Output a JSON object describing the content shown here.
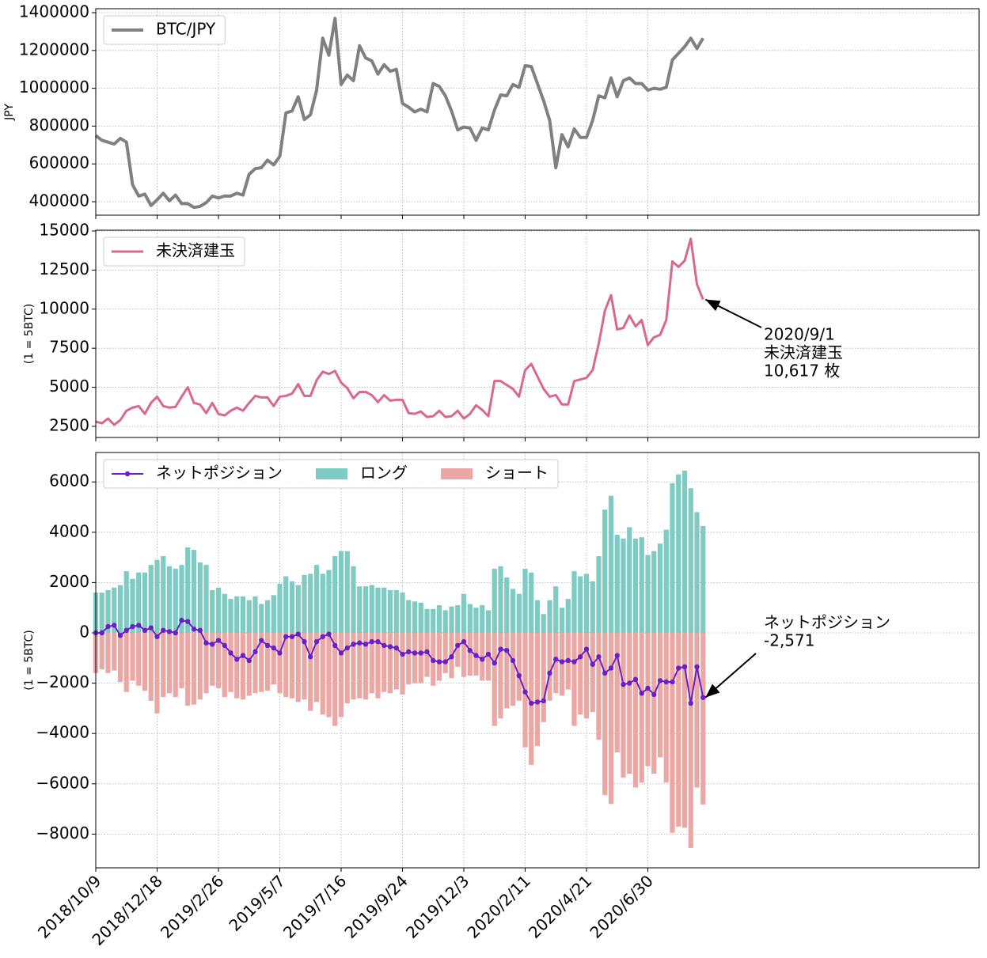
{
  "chart_data": [
    {
      "type": "line",
      "ylabel": "JPY",
      "x": [
        "2018/10/9",
        "2018/10/16",
        "2018/10/23",
        "2018/10/30",
        "2018/11/6",
        "2018/11/13",
        "2018/11/20",
        "2018/11/27",
        "2018/12/4",
        "2018/12/11",
        "2018/12/18",
        "2018/12/25",
        "2019/1/1",
        "2019/1/8",
        "2019/1/15",
        "2019/1/22",
        "2019/1/29",
        "2019/2/5",
        "2019/2/12",
        "2019/2/19",
        "2019/2/26",
        "2019/3/5",
        "2019/3/12",
        "2019/3/19",
        "2019/3/26",
        "2019/4/2",
        "2019/4/9",
        "2019/4/16",
        "2019/4/23",
        "2019/4/30",
        "2019/5/7",
        "2019/5/14",
        "2019/5/21",
        "2019/5/28",
        "2019/6/4",
        "2019/6/11",
        "2019/6/18",
        "2019/6/25",
        "2019/7/2",
        "2019/7/9",
        "2019/7/16",
        "2019/7/23",
        "2019/7/30",
        "2019/8/6",
        "2019/8/13",
        "2019/8/20",
        "2019/8/27",
        "2019/9/3",
        "2019/9/10",
        "2019/9/17",
        "2019/9/24",
        "2019/10/1",
        "2019/10/8",
        "2019/10/15",
        "2019/10/22",
        "2019/10/29",
        "2019/11/5",
        "2019/11/12",
        "2019/11/19",
        "2019/11/26",
        "2019/12/3",
        "2019/12/10",
        "2019/12/17",
        "2019/12/24",
        "2019/12/31",
        "2020/1/7",
        "2020/1/14",
        "2020/1/21",
        "2020/1/28",
        "2020/2/4",
        "2020/2/11",
        "2020/2/18",
        "2020/2/25",
        "2020/3/3",
        "2020/3/10",
        "2020/3/17",
        "2020/3/24",
        "2020/3/31",
        "2020/4/7",
        "2020/4/14",
        "2020/4/21",
        "2020/4/28",
        "2020/5/5",
        "2020/5/12",
        "2020/5/19",
        "2020/5/26",
        "2020/6/2",
        "2020/6/9",
        "2020/6/16",
        "2020/6/23",
        "2020/6/30",
        "2020/7/7",
        "2020/7/14",
        "2020/7/21",
        "2020/7/28",
        "2020/8/4",
        "2020/8/11",
        "2020/8/18",
        "2020/8/25",
        "2020/9/1"
      ],
      "xlim": [
        "2018/10/9",
        "2021/7/13"
      ],
      "xticks": [
        "2018/10/9",
        "2018/12/18",
        "2019/2/26",
        "2019/5/7",
        "2019/7/16",
        "2019/9/24",
        "2019/12/3",
        "2020/2/11",
        "2020/4/21",
        "2020/6/30"
      ],
      "ylim": [
        328900,
        1420900
      ],
      "yticks": [
        400000,
        600000,
        800000,
        1000000,
        1200000,
        1400000
      ],
      "grid": true,
      "legend": "upper left",
      "series": [
        {
          "name": "BTC/JPY",
          "color": "#808080",
          "width": 4,
          "values": [
            750000,
            725000,
            715000,
            705000,
            735000,
            715000,
            490000,
            430000,
            440000,
            380000,
            410000,
            445000,
            405000,
            435000,
            390000,
            390000,
            370000,
            375000,
            395000,
            430000,
            420000,
            430000,
            430000,
            445000,
            435000,
            545000,
            575000,
            580000,
            620000,
            595000,
            640000,
            870000,
            880000,
            955000,
            835000,
            860000,
            990000,
            1265000,
            1175000,
            1370000,
            1020000,
            1070000,
            1040000,
            1225000,
            1160000,
            1145000,
            1075000,
            1125000,
            1090000,
            1100000,
            920000,
            900000,
            875000,
            890000,
            875000,
            1025000,
            1010000,
            960000,
            880000,
            780000,
            795000,
            790000,
            725000,
            790000,
            780000,
            885000,
            965000,
            960000,
            1020000,
            1005000,
            1120000,
            1115000,
            1025000,
            935000,
            830000,
            580000,
            755000,
            690000,
            785000,
            740000,
            740000,
            830000,
            960000,
            950000,
            1055000,
            955000,
            1040000,
            1055000,
            1025000,
            1025000,
            990000,
            1000000,
            995000,
            1005000,
            1150000,
            1185000,
            1220000,
            1265000,
            1210000,
            1265000
          ]
        }
      ]
    },
    {
      "type": "line",
      "ylabel": "(1 = 5BTC)",
      "x": [
        "2018/10/9",
        "2018/10/16",
        "2018/10/23",
        "2018/10/30",
        "2018/11/6",
        "2018/11/13",
        "2018/11/20",
        "2018/11/27",
        "2018/12/4",
        "2018/12/11",
        "2018/12/18",
        "2018/12/25",
        "2019/1/1",
        "2019/1/8",
        "2019/1/15",
        "2019/1/22",
        "2019/1/29",
        "2019/2/5",
        "2019/2/12",
        "2019/2/19",
        "2019/2/26",
        "2019/3/5",
        "2019/3/12",
        "2019/3/19",
        "2019/3/26",
        "2019/4/2",
        "2019/4/9",
        "2019/4/16",
        "2019/4/23",
        "2019/4/30",
        "2019/5/7",
        "2019/5/14",
        "2019/5/21",
        "2019/5/28",
        "2019/6/4",
        "2019/6/11",
        "2019/6/18",
        "2019/6/25",
        "2019/7/2",
        "2019/7/9",
        "2019/7/16",
        "2019/7/23",
        "2019/7/30",
        "2019/8/6",
        "2019/8/13",
        "2019/8/20",
        "2019/8/27",
        "2019/9/3",
        "2019/9/10",
        "2019/9/17",
        "2019/9/24",
        "2019/10/1",
        "2019/10/8",
        "2019/10/15",
        "2019/10/22",
        "2019/10/29",
        "2019/11/5",
        "2019/11/12",
        "2019/11/19",
        "2019/11/26",
        "2019/12/3",
        "2019/12/10",
        "2019/12/17",
        "2019/12/24",
        "2019/12/31",
        "2020/1/7",
        "2020/1/14",
        "2020/1/21",
        "2020/1/28",
        "2020/2/4",
        "2020/2/11",
        "2020/2/18",
        "2020/2/25",
        "2020/3/3",
        "2020/3/10",
        "2020/3/17",
        "2020/3/24",
        "2020/3/31",
        "2020/4/7",
        "2020/4/14",
        "2020/4/21",
        "2020/4/28",
        "2020/5/5",
        "2020/5/12",
        "2020/5/19",
        "2020/5/26",
        "2020/6/2",
        "2020/6/9",
        "2020/6/16",
        "2020/6/23",
        "2020/6/30",
        "2020/7/7",
        "2020/7/14",
        "2020/7/21",
        "2020/7/28",
        "2020/8/4",
        "2020/8/11",
        "2020/8/18",
        "2020/8/25",
        "2020/9/1"
      ],
      "xlim": [
        "2018/10/9",
        "2021/7/13"
      ],
      "xticks": [
        "2018/10/9",
        "2018/12/18",
        "2019/2/26",
        "2019/5/7",
        "2019/7/16",
        "2019/9/24",
        "2019/12/3",
        "2020/2/11",
        "2020/4/21",
        "2020/6/30"
      ],
      "ylim": [
        1790,
        15050
      ],
      "yticks": [
        2500,
        5000,
        7500,
        10000,
        12500,
        15000
      ],
      "grid": true,
      "legend": "upper left",
      "series": [
        {
          "name": "未決済建玉",
          "color": "#d9688a",
          "width": 3,
          "values": [
            2800,
            2700,
            3000,
            2600,
            2900,
            3500,
            3700,
            3800,
            3300,
            4000,
            4400,
            3800,
            3700,
            3750,
            4400,
            5000,
            4000,
            3900,
            3350,
            4000,
            3300,
            3200,
            3500,
            3700,
            3500,
            4000,
            4450,
            4350,
            4350,
            3800,
            4400,
            4450,
            4600,
            5200,
            4450,
            4450,
            5450,
            6000,
            5850,
            6050,
            5300,
            4950,
            4300,
            4700,
            4700,
            4500,
            4050,
            4500,
            4150,
            4200,
            4200,
            3350,
            3300,
            3450,
            3100,
            3150,
            3500,
            3100,
            3150,
            3500,
            3000,
            3300,
            3850,
            3550,
            3150,
            5400,
            5400,
            5150,
            4900,
            4400,
            6100,
            6500,
            5700,
            4900,
            4400,
            4500,
            3900,
            3900,
            5400,
            5500,
            5600,
            6100,
            7800,
            9900,
            10900,
            8700,
            8800,
            9600,
            8900,
            9300,
            7700,
            8200,
            8350,
            9300,
            13050,
            12700,
            13100,
            14500,
            11600,
            10617
          ]
        }
      ],
      "annotation": [
        "2020/9/1",
        "未決済建玉",
        "10,617 枚"
      ]
    },
    {
      "type": "bar-line",
      "ylabel": "(1 = 5BTC)",
      "x": [
        "2018/10/9",
        "2018/10/16",
        "2018/10/23",
        "2018/10/30",
        "2018/11/6",
        "2018/11/13",
        "2018/11/20",
        "2018/11/27",
        "2018/12/4",
        "2018/12/11",
        "2018/12/18",
        "2018/12/25",
        "2019/1/1",
        "2019/1/8",
        "2019/1/15",
        "2019/1/22",
        "2019/1/29",
        "2019/2/5",
        "2019/2/12",
        "2019/2/19",
        "2019/2/26",
        "2019/3/5",
        "2019/3/12",
        "2019/3/19",
        "2019/3/26",
        "2019/4/2",
        "2019/4/9",
        "2019/4/16",
        "2019/4/23",
        "2019/4/30",
        "2019/5/7",
        "2019/5/14",
        "2019/5/21",
        "2019/5/28",
        "2019/6/4",
        "2019/6/11",
        "2019/6/18",
        "2019/6/25",
        "2019/7/2",
        "2019/7/9",
        "2019/7/16",
        "2019/7/23",
        "2019/7/30",
        "2019/8/6",
        "2019/8/13",
        "2019/8/20",
        "2019/8/27",
        "2019/9/3",
        "2019/9/10",
        "2019/9/17",
        "2019/9/24",
        "2019/10/1",
        "2019/10/8",
        "2019/10/15",
        "2019/10/22",
        "2019/10/29",
        "2019/11/5",
        "2019/11/12",
        "2019/11/19",
        "2019/11/26",
        "2019/12/3",
        "2019/12/10",
        "2019/12/17",
        "2019/12/24",
        "2019/12/31",
        "2020/1/7",
        "2020/1/14",
        "2020/1/21",
        "2020/1/28",
        "2020/2/4",
        "2020/2/11",
        "2020/2/18",
        "2020/2/25",
        "2020/3/3",
        "2020/3/10",
        "2020/3/17",
        "2020/3/24",
        "2020/3/31",
        "2020/4/7",
        "2020/4/14",
        "2020/4/21",
        "2020/4/28",
        "2020/5/5",
        "2020/5/12",
        "2020/5/19",
        "2020/5/26",
        "2020/6/2",
        "2020/6/9",
        "2020/6/16",
        "2020/6/23",
        "2020/6/30",
        "2020/7/7",
        "2020/7/14",
        "2020/7/21",
        "2020/7/28",
        "2020/8/4",
        "2020/8/11",
        "2020/8/18",
        "2020/8/25",
        "2020/9/1"
      ],
      "xlim": [
        "2018/10/9",
        "2021/7/13"
      ],
      "xticks": [
        "2018/10/9",
        "2018/12/18",
        "2019/2/26",
        "2019/5/7",
        "2019/7/16",
        "2019/9/24",
        "2019/12/3",
        "2020/2/11",
        "2020/4/21",
        "2020/6/30"
      ],
      "ylim": [
        -9340,
        7170
      ],
      "yticks": [
        {
          "value": -8000,
          "label": "−8000"
        },
        {
          "value": -6000,
          "label": "−6000"
        },
        {
          "value": -4000,
          "label": "−4000"
        },
        {
          "value": -2000,
          "label": "−2000"
        },
        0,
        2000,
        4000,
        6000
      ],
      "grid": true,
      "legend": "upper left",
      "series": [
        {
          "name": "ネットポジション",
          "type": "line",
          "marker": true,
          "color": "#6a1fc9",
          "width": 2,
          "values": [
            0,
            0,
            250,
            300,
            -100,
            100,
            250,
            300,
            100,
            200,
            -150,
            100,
            50,
            0,
            500,
            450,
            150,
            100,
            -400,
            -450,
            -300,
            -500,
            -800,
            -1050,
            -900,
            -1100,
            -750,
            -300,
            -500,
            -600,
            -800,
            -150,
            -150,
            -50,
            -350,
            -950,
            -350,
            -150,
            -50,
            -500,
            -800,
            -600,
            -450,
            -400,
            -450,
            -350,
            -350,
            -500,
            -550,
            -600,
            -850,
            -750,
            -800,
            -800,
            -750,
            -1100,
            -1150,
            -1150,
            -950,
            -500,
            -350,
            -700,
            -900,
            -1050,
            -850,
            -1200,
            -650,
            -700,
            -1100,
            -1700,
            -2350,
            -2800,
            -2750,
            -2700,
            -1600,
            -1050,
            -1150,
            -1100,
            -1150,
            -950,
            -650,
            -1250,
            -950,
            -1600,
            -1400,
            -900,
            -2050,
            -2000,
            -1850,
            -2400,
            -2200,
            -2450,
            -1900,
            -1950,
            -1950,
            -1400,
            -1350,
            -2800,
            -1350,
            -2571
          ]
        },
        {
          "name": "ロング",
          "type": "bar",
          "color": "#7dcbc2",
          "values": [
            1600,
            1600,
            1700,
            1800,
            1900,
            2450,
            2150,
            2400,
            2400,
            2700,
            2900,
            3050,
            2650,
            2550,
            2700,
            3400,
            3300,
            2800,
            2700,
            1700,
            1800,
            1550,
            1350,
            1450,
            1450,
            1300,
            1450,
            1150,
            1300,
            1500,
            1950,
            2250,
            2050,
            1900,
            2300,
            2350,
            2700,
            2350,
            2500,
            3050,
            3250,
            3250,
            2650,
            1850,
            1850,
            1900,
            1800,
            1800,
            1700,
            1700,
            1600,
            1300,
            1250,
            1200,
            950,
            950,
            1100,
            900,
            1050,
            1100,
            1550,
            1150,
            1000,
            1100,
            900,
            2550,
            2650,
            2200,
            1750,
            1550,
            2550,
            2400,
            1300,
            750,
            1300,
            1850,
            1000,
            1350,
            2450,
            2250,
            2350,
            2050,
            3050,
            4900,
            5450,
            3900,
            3750,
            4200,
            3750,
            3800,
            3100,
            3250,
            3550,
            4100,
            5950,
            6300,
            6450,
            5750,
            4800,
            4250
          ]
        },
        {
          "name": "ショート",
          "type": "bar",
          "color": "#eba7a3",
          "values": [
            -1600,
            -1450,
            -1600,
            -1500,
            -1950,
            -2350,
            -1900,
            -2100,
            -2300,
            -2700,
            -3200,
            -2550,
            -2400,
            -2550,
            -2200,
            -2900,
            -2850,
            -2650,
            -2400,
            -2100,
            -2200,
            -2550,
            -2350,
            -2600,
            -2650,
            -2500,
            -2400,
            -2350,
            -2300,
            -2050,
            -2400,
            -2550,
            -2600,
            -2750,
            -2650,
            -3100,
            -2750,
            -3250,
            -3350,
            -3700,
            -3350,
            -2800,
            -2650,
            -2600,
            -2650,
            -2400,
            -2600,
            -2350,
            -2400,
            -2250,
            -2450,
            -2050,
            -2000,
            -2000,
            -1750,
            -2100,
            -1900,
            -1600,
            -1800,
            -1350,
            -1750,
            -1700,
            -1700,
            -1900,
            -1900,
            -3700,
            -3400,
            -3000,
            -2900,
            -2700,
            -4550,
            -5250,
            -4500,
            -3550,
            -2700,
            -2400,
            -2500,
            -2250,
            -3700,
            -3250,
            -3400,
            -3150,
            -4250,
            -6450,
            -6800,
            -4750,
            -5750,
            -5600,
            -6150,
            -5950,
            -5300,
            -5600,
            -4950,
            -5950,
            -7950,
            -7700,
            -7750,
            -8550,
            -6150,
            -6821
          ]
        }
      ],
      "annotation": [
        "ネットポジション",
        "-2,571"
      ]
    }
  ]
}
